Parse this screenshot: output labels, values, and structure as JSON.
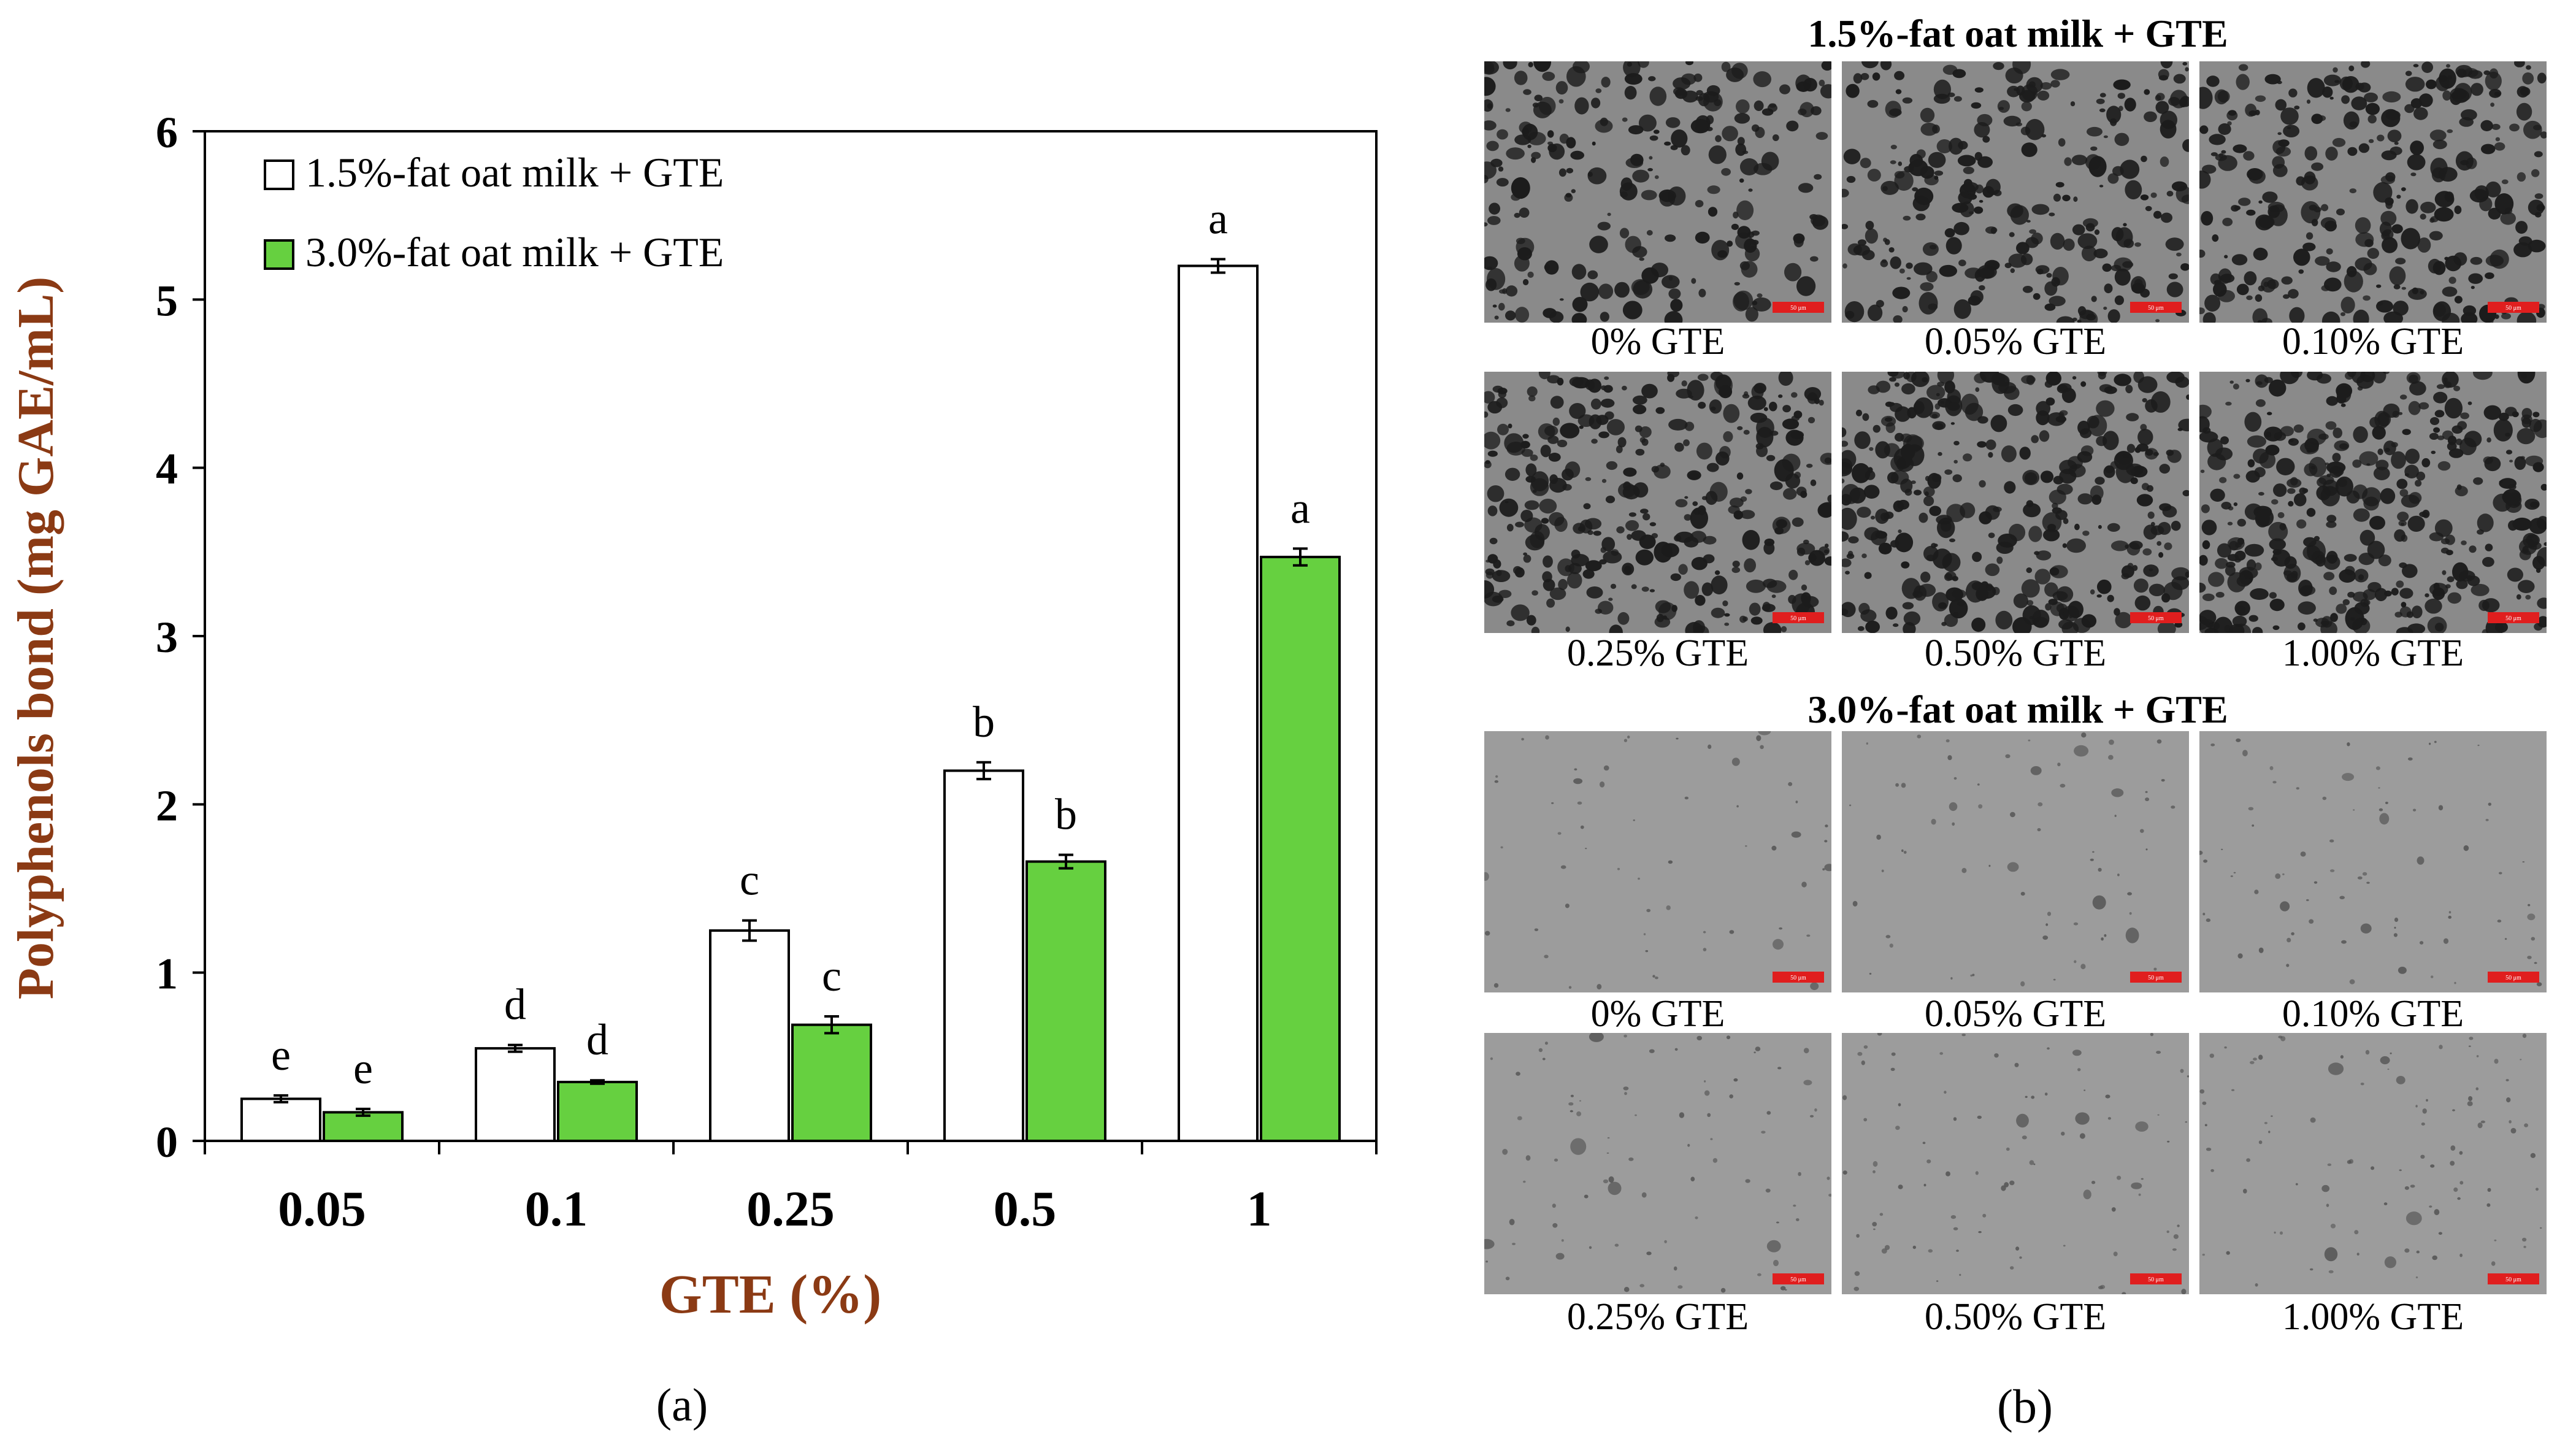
{
  "chart_data": {
    "type": "bar",
    "xlabel": "GTE (%)",
    "ylabel": "Polyphenols bond (mg GAE/mL)",
    "ylim": [
      0,
      6
    ],
    "yticks": [
      "0",
      "1",
      "2",
      "3",
      "4",
      "5",
      "6"
    ],
    "categories": [
      "0.05",
      "0.1",
      "0.25",
      "0.5",
      "1"
    ],
    "legend_position": "top-left",
    "series": [
      {
        "name": "1.5%-fat oat milk + GTE",
        "color": "#ffffff",
        "values": [
          0.25,
          0.55,
          1.25,
          2.2,
          5.2
        ],
        "errors": [
          0.02,
          0.02,
          0.06,
          0.05,
          0.04
        ],
        "labels": [
          "e",
          "d",
          "c",
          "b",
          "a"
        ]
      },
      {
        "name": "3.0%-fat oat milk + GTE",
        "color": "#66d040",
        "values": [
          0.17,
          0.35,
          0.69,
          1.66,
          3.47
        ],
        "errors": [
          0.02,
          0.01,
          0.05,
          0.04,
          0.05
        ],
        "labels": [
          "e",
          "d",
          "c",
          "b",
          "a"
        ]
      }
    ]
  },
  "colors": {
    "axis_title": "#8b3a14",
    "scale_bar": "#e01e1e"
  },
  "panel_a_label": "(a)",
  "panel_b_label": "(b)",
  "micrographs": {
    "groups": [
      {
        "title": "1.5%-fat oat milk + GTE",
        "captions": [
          "0% GTE",
          "0.05% GTE",
          "0.10% GTE",
          "0.25% GTE",
          "0.50% GTE",
          "1.00% GTE"
        ],
        "scale_label": "50 μm"
      },
      {
        "title": "3.0%-fat oat milk + GTE",
        "captions": [
          "0% GTE",
          "0.05% GTE",
          "0.10% GTE",
          "0.25% GTE",
          "0.50% GTE",
          "1.00% GTE"
        ],
        "scale_label": "50 μm"
      }
    ]
  }
}
